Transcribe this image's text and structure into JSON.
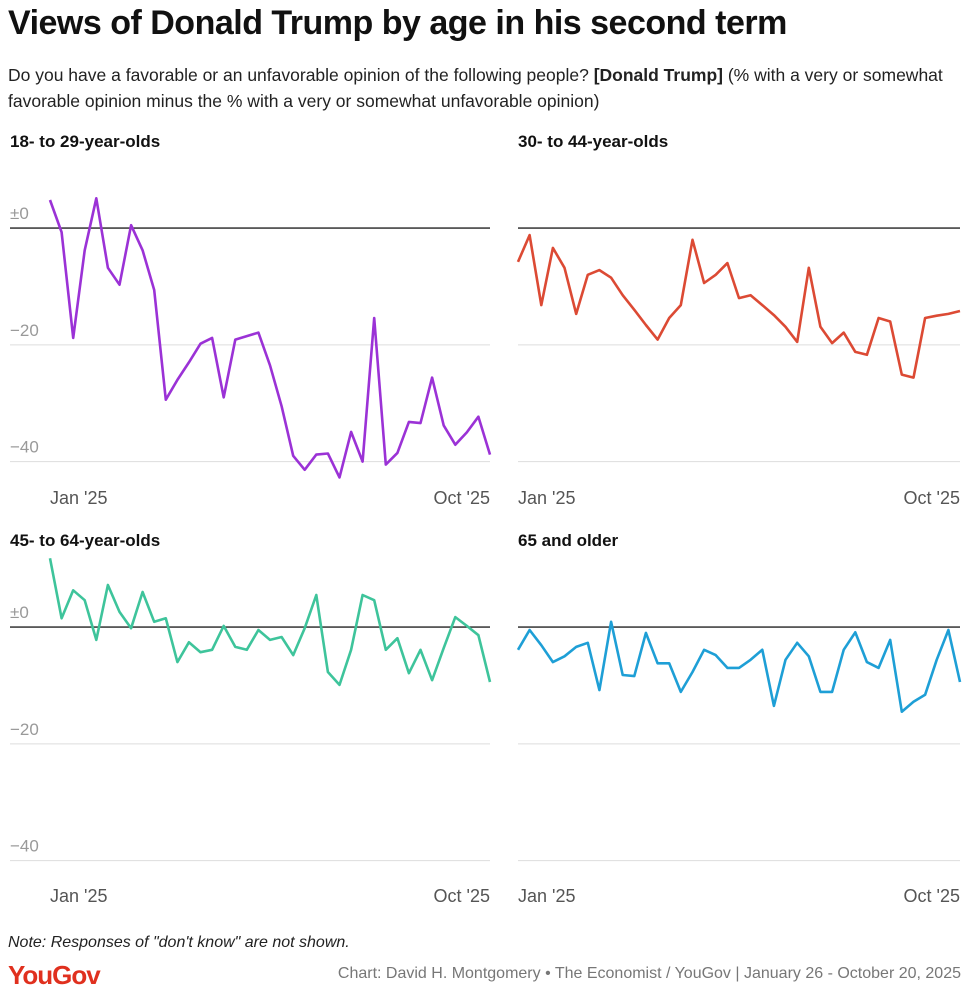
{
  "title": "Views of Donald Trump by age in his second term",
  "subtitle": {
    "before": "Do you have a favorable or an unfavorable opinion of the following people? ",
    "emphasis": "[Donald Trump]",
    "after": " (% with a very or somewhat favorable opinion minus the % with a very or somewhat unfavorable opinion)"
  },
  "chart_data": [
    {
      "type": "line",
      "title": "18- to 29-year-olds",
      "color": "#9b32d6",
      "categories": [
        "Jan '25",
        null,
        null,
        null,
        null,
        null,
        null,
        null,
        null,
        null,
        null,
        null,
        null,
        null,
        null,
        null,
        null,
        null,
        null,
        null,
        null,
        null,
        null,
        null,
        null,
        null,
        null,
        null,
        null,
        null,
        null,
        null,
        null,
        null,
        null,
        null,
        null,
        null,
        "Oct '25"
      ],
      "values": [
        4.8,
        -0.7,
        -18.8,
        -3.8,
        5.1,
        -6.8,
        -9.7,
        0.5,
        -3.8,
        -10.6,
        -29.4,
        -26,
        -23,
        -19.8,
        -18.8,
        -29,
        -19.1,
        -18.5,
        -17.9,
        -23.5,
        -30.5,
        -39,
        -41.4,
        -38.8,
        -38.6,
        -42.7,
        -34.9,
        -40,
        -15.4,
        -40.5,
        -38.5,
        -33.2,
        -33.4,
        -25.6,
        -33.8,
        -37.1,
        -35,
        -32.3,
        -38.8
      ],
      "ylim": [
        -44,
        12
      ],
      "yticks": [
        {
          "value": 0,
          "label": "±0"
        },
        {
          "value": -20,
          "label": "−20"
        },
        {
          "value": -40,
          "label": "−40"
        }
      ]
    },
    {
      "type": "line",
      "title": "30- to 44-year-olds",
      "color": "#dc4a34",
      "categories": [
        "Jan '25",
        null,
        null,
        null,
        null,
        null,
        null,
        null,
        null,
        null,
        null,
        null,
        null,
        null,
        null,
        null,
        null,
        null,
        null,
        null,
        null,
        null,
        null,
        null,
        null,
        null,
        null,
        null,
        null,
        null,
        null,
        null,
        null,
        null,
        null,
        null,
        null,
        null,
        "Oct '25"
      ],
      "values": [
        -5.8,
        -1.2,
        -13.2,
        -3.4,
        -6.8,
        -14.7,
        -8,
        -7.2,
        -8.5,
        -11.5,
        -14,
        -16.6,
        -19.1,
        -15.4,
        -13.2,
        -2,
        -9.4,
        -8,
        -6,
        -12,
        -11.5,
        -13.2,
        -14.9,
        -16.9,
        -19.5,
        -6.8,
        -16.9,
        -19.7,
        -17.9,
        -21.2,
        -21.7,
        -15.4,
        -16,
        -25.1,
        -25.6,
        -15.4,
        -15,
        -14.7,
        -14.2
      ],
      "ylim": [
        -44,
        12
      ],
      "yticks": [
        0,
        -20,
        -40
      ]
    },
    {
      "type": "line",
      "title": "45- to 64-year-olds",
      "color": "#3ec49b",
      "categories": [
        "Jan '25",
        null,
        null,
        null,
        null,
        null,
        null,
        null,
        null,
        null,
        null,
        null,
        null,
        null,
        null,
        null,
        null,
        null,
        null,
        null,
        null,
        null,
        null,
        null,
        null,
        null,
        null,
        null,
        null,
        null,
        null,
        null,
        null,
        null,
        null,
        null,
        null,
        null,
        "Oct '25"
      ],
      "values": [
        11.8,
        1.5,
        6.3,
        4.6,
        -2.2,
        7.2,
        2.6,
        -0.2,
        6,
        0.9,
        1.5,
        -6,
        -2.6,
        -4.3,
        -3.9,
        0.2,
        -3.4,
        -3.9,
        -0.5,
        -2.2,
        -1.7,
        -4.8,
        -0.2,
        5.5,
        -7.7,
        -9.9,
        -3.9,
        5.5,
        4.6,
        -3.9,
        -1.9,
        -7.9,
        -3.9,
        -9.1,
        -3.6,
        1.7,
        0.2,
        -1.4,
        -9.4
      ],
      "ylim": [
        -44,
        12
      ],
      "yticks": [
        {
          "value": 0,
          "label": "±0"
        },
        {
          "value": -20,
          "label": "−20"
        },
        {
          "value": -40,
          "label": "−40"
        }
      ]
    },
    {
      "type": "line",
      "title": "65 and older",
      "color": "#1e9fd6",
      "categories": [
        "Jan '25",
        null,
        null,
        null,
        null,
        null,
        null,
        null,
        null,
        null,
        null,
        null,
        null,
        null,
        null,
        null,
        null,
        null,
        null,
        null,
        null,
        null,
        null,
        null,
        null,
        null,
        null,
        null,
        null,
        null,
        null,
        null,
        null,
        null,
        null,
        null,
        null,
        null,
        "Oct '25"
      ],
      "values": [
        -3.9,
        -0.5,
        -3.1,
        -6,
        -5,
        -3.4,
        -2.7,
        -10.8,
        0.9,
        -8.2,
        -8.4,
        -1,
        -6.2,
        -6.2,
        -11.1,
        -7.7,
        -3.9,
        -4.8,
        -7,
        -7,
        -5.6,
        -3.9,
        -13.5,
        -5.6,
        -2.7,
        -5,
        -11.1,
        -11.1,
        -3.9,
        -0.9,
        -6,
        -7,
        -2.2,
        -14.5,
        -12.8,
        -11.6,
        -5.6,
        -0.5,
        -9.4
      ],
      "ylim": [
        -44,
        12
      ],
      "yticks": [
        0,
        -20,
        -40
      ]
    }
  ],
  "note": "Note: Responses of \"don't know\" are not shown.",
  "logo": "YouGov",
  "source": "Chart: David H. Montgomery • The Economist / YouGov | January 26 - October 20, 2025"
}
